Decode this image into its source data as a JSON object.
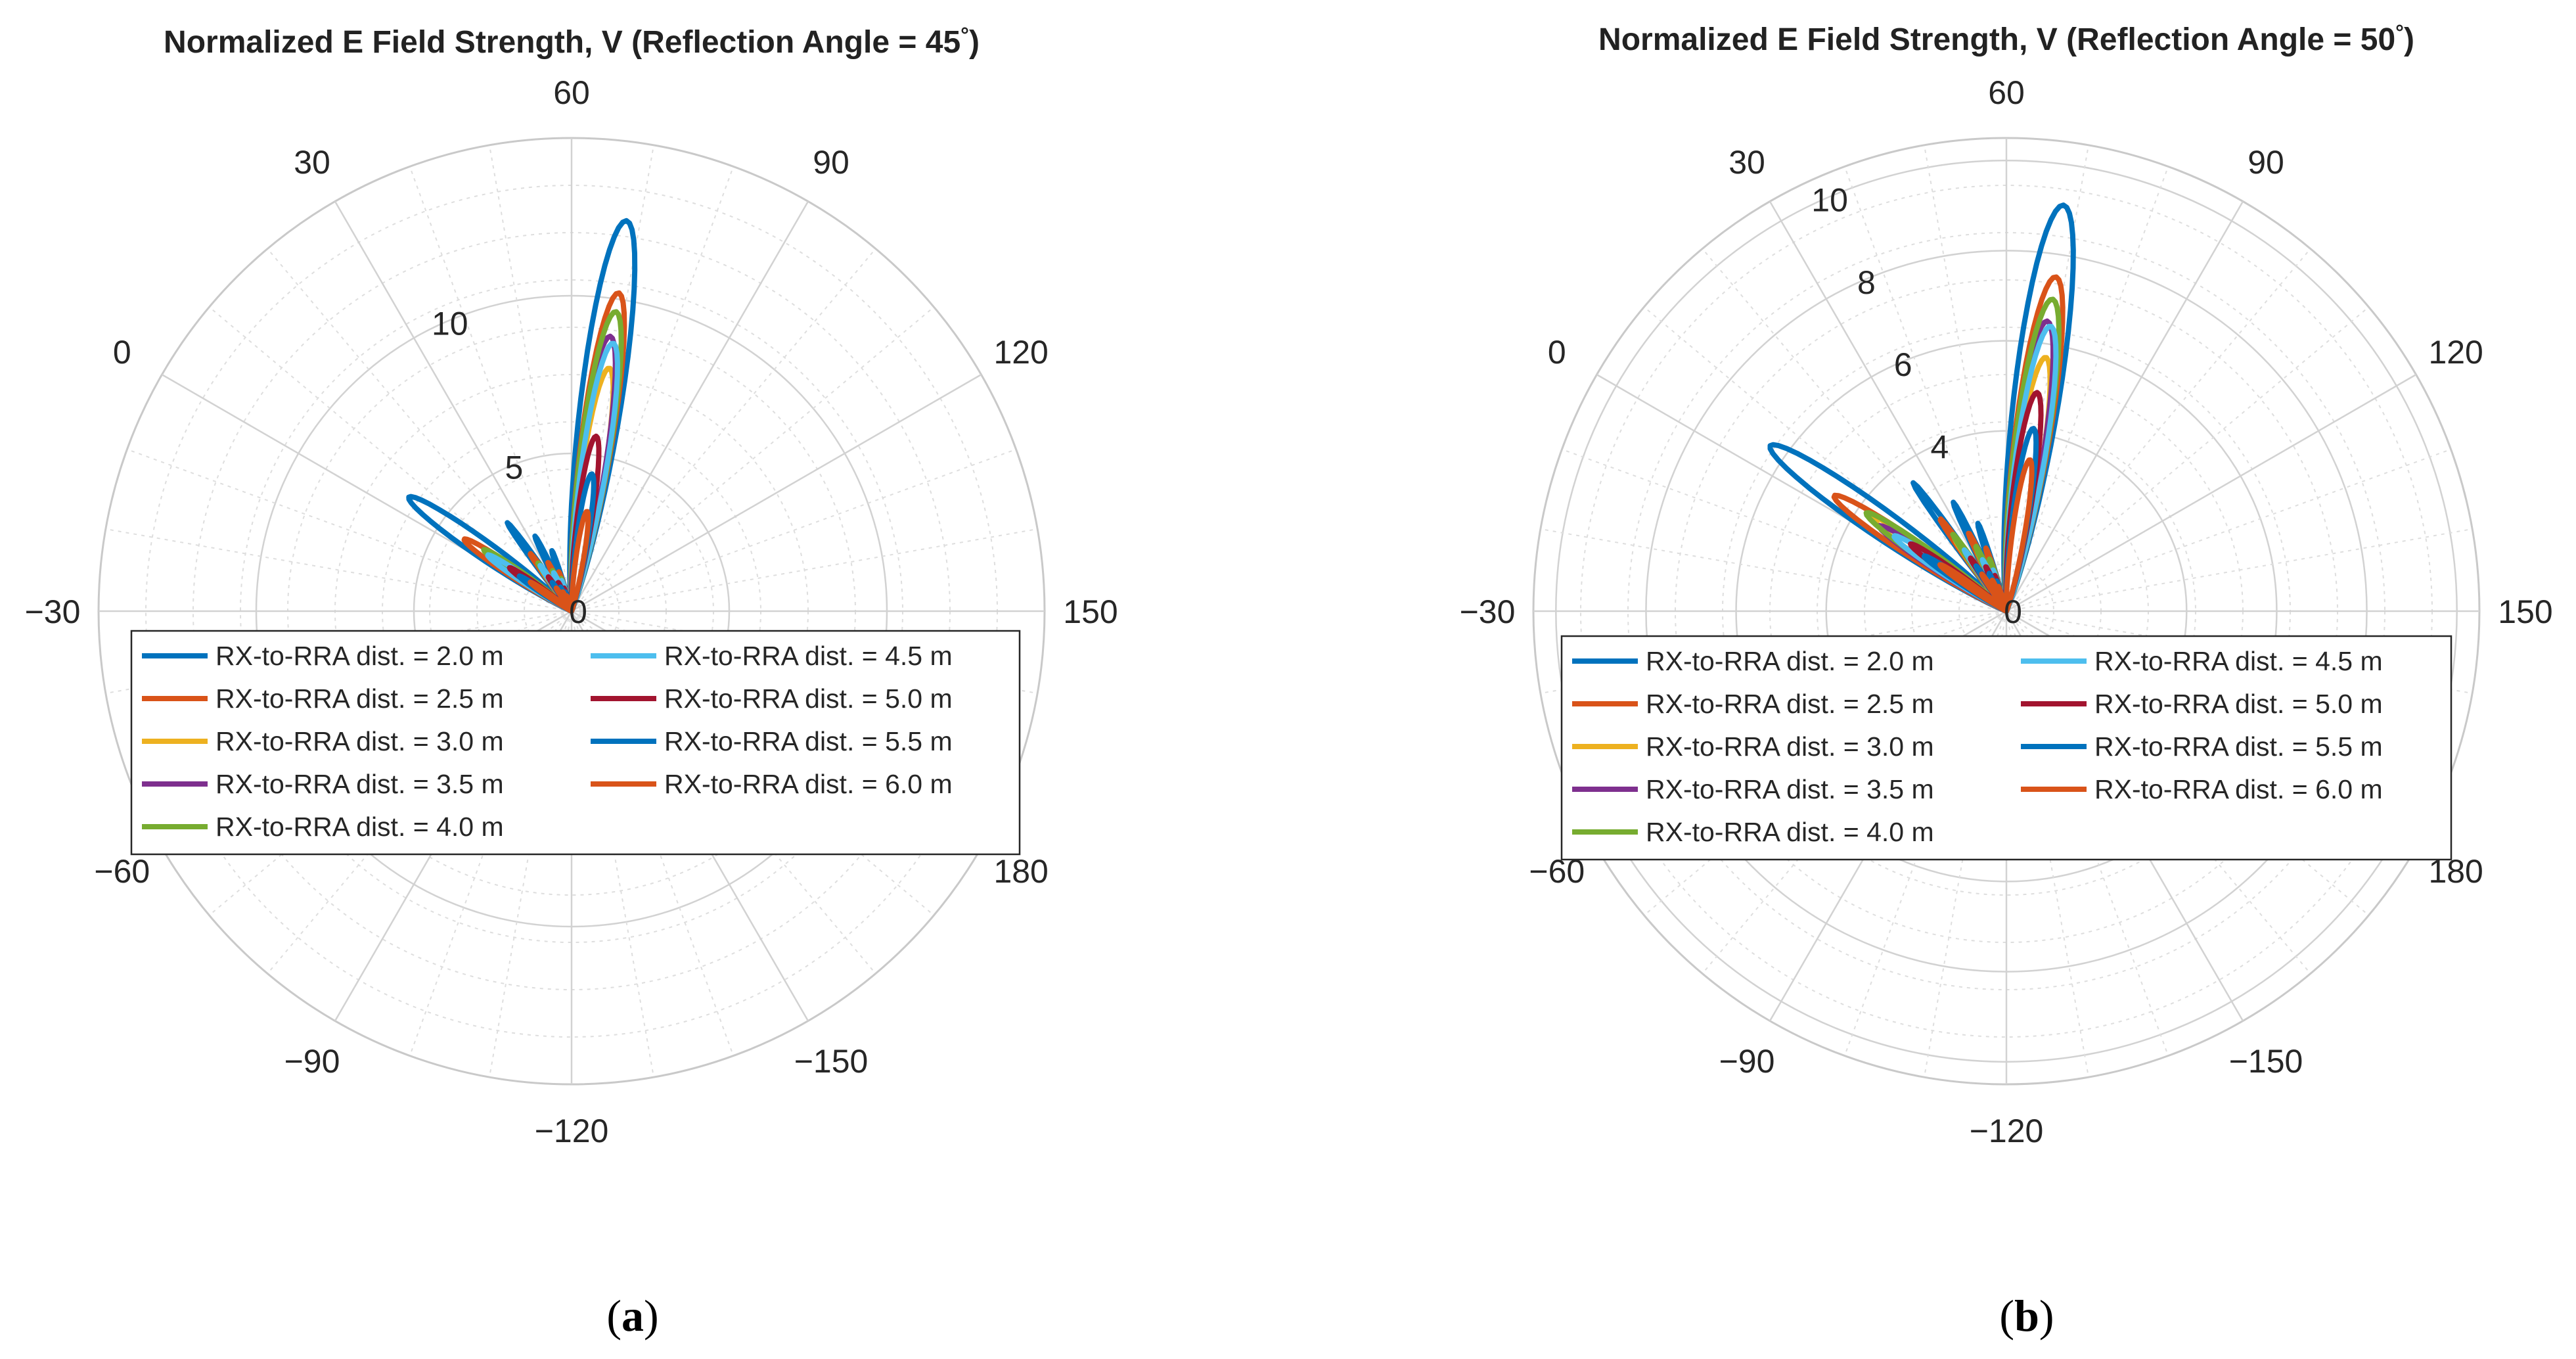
{
  "chart_data": [
    {
      "type": "polar",
      "title": "Normalized E Field Strength, V (Reflection Angle = 45",
      "title_degree": "°",
      "title_close": ")",
      "caption_open": "(",
      "caption_letter": "a",
      "caption_close": ")",
      "angle_ticks": [
        "30",
        "60",
        "90",
        "120",
        "150",
        "180",
        "−150",
        "−120",
        "−90",
        "−60",
        "−30",
        "0"
      ],
      "angle_tick_values": [
        30,
        60,
        90,
        120,
        150,
        180,
        -150,
        -120,
        -90,
        -60,
        -30,
        0
      ],
      "r_max": 15,
      "r_ticks": [
        "0",
        "5",
        "10"
      ],
      "r_tick_values": [
        0,
        5,
        10
      ],
      "series": [
        {
          "name": "RX-to-RRA dist. = 2.0 m",
          "color": "#0072BD",
          "main_peak": 12.5,
          "main_width": 7,
          "side_peak": 6.3,
          "side_width": 6
        },
        {
          "name": "RX-to-RRA dist. = 2.5 m",
          "color": "#D95319",
          "main_peak": 10.2,
          "main_width": 6.5,
          "side_peak": 4.1,
          "side_width": 5
        },
        {
          "name": "RX-to-RRA dist. = 3.0 m",
          "color": "#EDB120",
          "main_peak": 7.8,
          "main_width": 6.2,
          "side_peak": 3.0,
          "side_width": 4.5
        },
        {
          "name": "RX-to-RRA dist. = 3.5 m",
          "color": "#7E2F8E",
          "main_peak": 8.8,
          "main_width": 6.5,
          "side_peak": 2.6,
          "side_width": 4.2
        },
        {
          "name": "RX-to-RRA dist. = 4.0 m",
          "color": "#77AC30",
          "main_peak": 9.6,
          "main_width": 6.5,
          "side_peak": 3.4,
          "side_width": 4.5
        },
        {
          "name": "RX-to-RRA dist. = 4.5 m",
          "color": "#4DBEEE",
          "main_peak": 8.6,
          "main_width": 6.3,
          "side_peak": 3.2,
          "side_width": 4.3
        },
        {
          "name": "RX-to-RRA dist. = 5.0 m",
          "color": "#A2142F",
          "main_peak": 5.6,
          "main_width": 5.8,
          "side_peak": 2.4,
          "side_width": 4.0
        },
        {
          "name": "RX-to-RRA dist. = 5.5 m",
          "color": "#0072BD",
          "main_peak": 4.4,
          "main_width": 5.5,
          "side_peak": 2.0,
          "side_width": 3.8
        },
        {
          "name": "RX-to-RRA dist. = 6.0 m",
          "color": "#D95319",
          "main_peak": 3.2,
          "main_width": 5.2,
          "side_peak": 1.6,
          "side_width": 3.6
        }
      ]
    },
    {
      "type": "polar",
      "title": "Normalized E Field Strength, V (Reflection Angle = 50",
      "title_degree": "°",
      "title_close": ")",
      "caption_open": "(",
      "caption_letter": "b",
      "caption_close": ")",
      "angle_ticks": [
        "30",
        "60",
        "90",
        "120",
        "150",
        "180",
        "−150",
        "−120",
        "−90",
        "−60",
        "−30",
        "0"
      ],
      "angle_tick_values": [
        30,
        60,
        90,
        120,
        150,
        180,
        -150,
        -120,
        -90,
        -60,
        -30,
        0
      ],
      "r_max": 10.5,
      "r_ticks": [
        "0",
        "4",
        "6",
        "8",
        "10"
      ],
      "r_tick_values": [
        0,
        4,
        6,
        8,
        10
      ],
      "series": [
        {
          "name": "RX-to-RRA dist. = 2.0 m",
          "color": "#0072BD",
          "main_peak": 9.1,
          "main_width": 7.5,
          "side_peak": 6.4,
          "side_width": 6.5
        },
        {
          "name": "RX-to-RRA dist. = 2.5 m",
          "color": "#D95319",
          "main_peak": 7.5,
          "main_width": 7.0,
          "side_peak": 4.6,
          "side_width": 5.5
        },
        {
          "name": "RX-to-RRA dist. = 3.0 m",
          "color": "#EDB120",
          "main_peak": 5.7,
          "main_width": 6.5,
          "side_peak": 3.6,
          "side_width": 5.0
        },
        {
          "name": "RX-to-RRA dist. = 3.5 m",
          "color": "#7E2F8E",
          "main_peak": 6.5,
          "main_width": 6.8,
          "side_peak": 3.4,
          "side_width": 4.8
        },
        {
          "name": "RX-to-RRA dist. = 4.0 m",
          "color": "#77AC30",
          "main_peak": 7.0,
          "main_width": 7.0,
          "side_peak": 3.8,
          "side_width": 5.0
        },
        {
          "name": "RX-to-RRA dist. = 4.5 m",
          "color": "#4DBEEE",
          "main_peak": 6.4,
          "main_width": 6.8,
          "side_peak": 3.0,
          "side_width": 4.6
        },
        {
          "name": "RX-to-RRA dist. = 5.0 m",
          "color": "#A2142F",
          "main_peak": 4.9,
          "main_width": 6.2,
          "side_peak": 2.6,
          "side_width": 4.3
        },
        {
          "name": "RX-to-RRA dist. = 5.5 m",
          "color": "#0072BD",
          "main_peak": 4.1,
          "main_width": 5.8,
          "side_peak": 2.2,
          "side_width": 4.0
        },
        {
          "name": "RX-to-RRA dist. = 6.0 m",
          "color": "#D95319",
          "main_peak": 3.4,
          "main_width": 5.5,
          "side_peak": 1.8,
          "side_width": 3.8
        }
      ]
    }
  ]
}
